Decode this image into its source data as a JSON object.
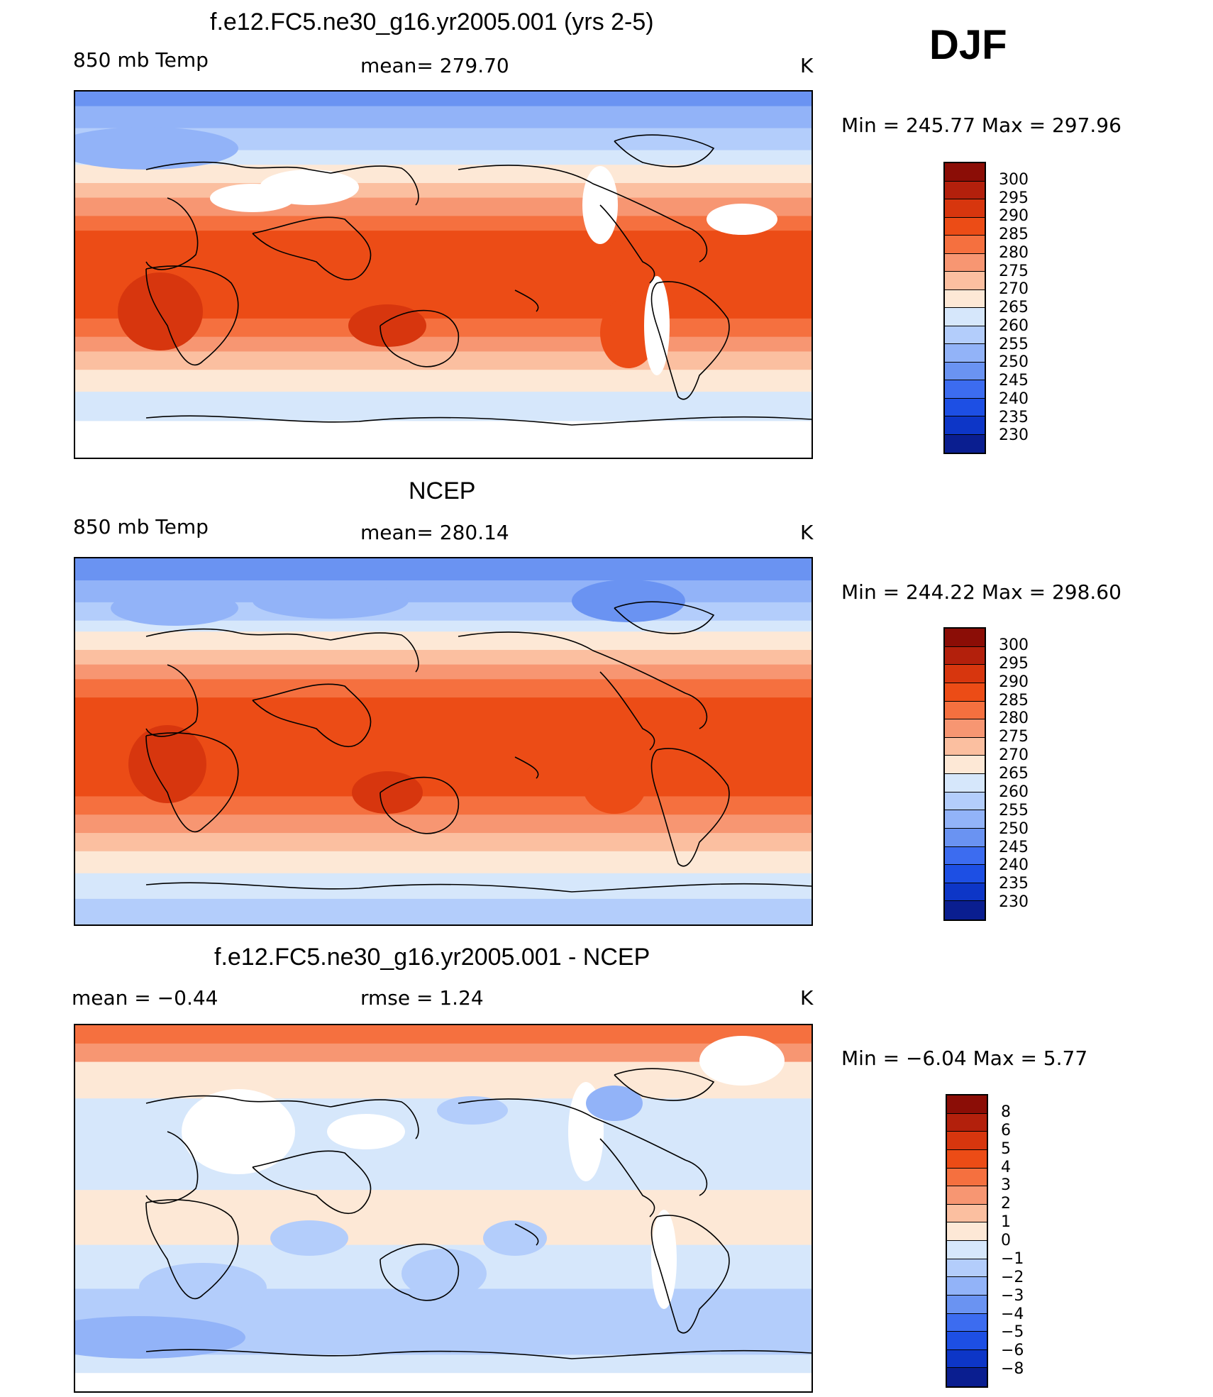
{
  "season": "DJF",
  "panels": [
    {
      "title": "f.e12.FC5.ne30_g16.yr2005.001 (yrs 2-5)",
      "left_label": "850 mb Temp",
      "center_label": "mean=  279.70",
      "units": "K",
      "minmax": "Min  =  245.77  Max  =  297.96",
      "kind": "model",
      "colorbar": {
        "labels": [
          "300",
          "295",
          "290",
          "285",
          "280",
          "275",
          "270",
          "265",
          "260",
          "255",
          "250",
          "245",
          "240",
          "235",
          "230"
        ],
        "colors": [
          "#8b0d06",
          "#b3200c",
          "#d7360e",
          "#ec4c16",
          "#f5703f",
          "#f79672",
          "#fbbfa0",
          "#fde8d6",
          "#d6e7fb",
          "#b3cdfb",
          "#92b3f8",
          "#6a93f2",
          "#3c6cf0",
          "#1d4fe4",
          "#0d36c7",
          "#0a1e90"
        ]
      }
    },
    {
      "title": "NCEP",
      "left_label": "850 mb Temp",
      "center_label": "mean=  280.14",
      "units": "K",
      "minmax": "Min  =  244.22  Max  =  298.60",
      "kind": "obs",
      "colorbar": {
        "labels": [
          "300",
          "295",
          "290",
          "285",
          "280",
          "275",
          "270",
          "265",
          "260",
          "255",
          "250",
          "245",
          "240",
          "235",
          "230"
        ],
        "colors": [
          "#8b0d06",
          "#b3200c",
          "#d7360e",
          "#ec4c16",
          "#f5703f",
          "#f79672",
          "#fbbfa0",
          "#fde8d6",
          "#d6e7fb",
          "#b3cdfb",
          "#92b3f8",
          "#6a93f2",
          "#3c6cf0",
          "#1d4fe4",
          "#0d36c7",
          "#0a1e90"
        ]
      }
    },
    {
      "title": "f.e12.FC5.ne30_g16.yr2005.001 - NCEP",
      "left_label": "mean  =    −0.44",
      "center_label": "rmse  =     1.24",
      "units": "K",
      "minmax": "Min  =    −6.04  Max  =      5.77",
      "kind": "diff",
      "colorbar": {
        "labels": [
          "8",
          "6",
          "5",
          "4",
          "3",
          "2",
          "1",
          "0",
          "−1",
          "−2",
          "−3",
          "−4",
          "−5",
          "−6",
          "−8"
        ],
        "colors": [
          "#8b0d06",
          "#b3200c",
          "#d7360e",
          "#ec4c16",
          "#f5703f",
          "#f79672",
          "#fbbfa0",
          "#fde8d6",
          "#d6e7fb",
          "#b3cdfb",
          "#92b3f8",
          "#6a93f2",
          "#3c6cf0",
          "#1d4fe4",
          "#0d36c7",
          "#0a1e90"
        ]
      }
    }
  ]
}
